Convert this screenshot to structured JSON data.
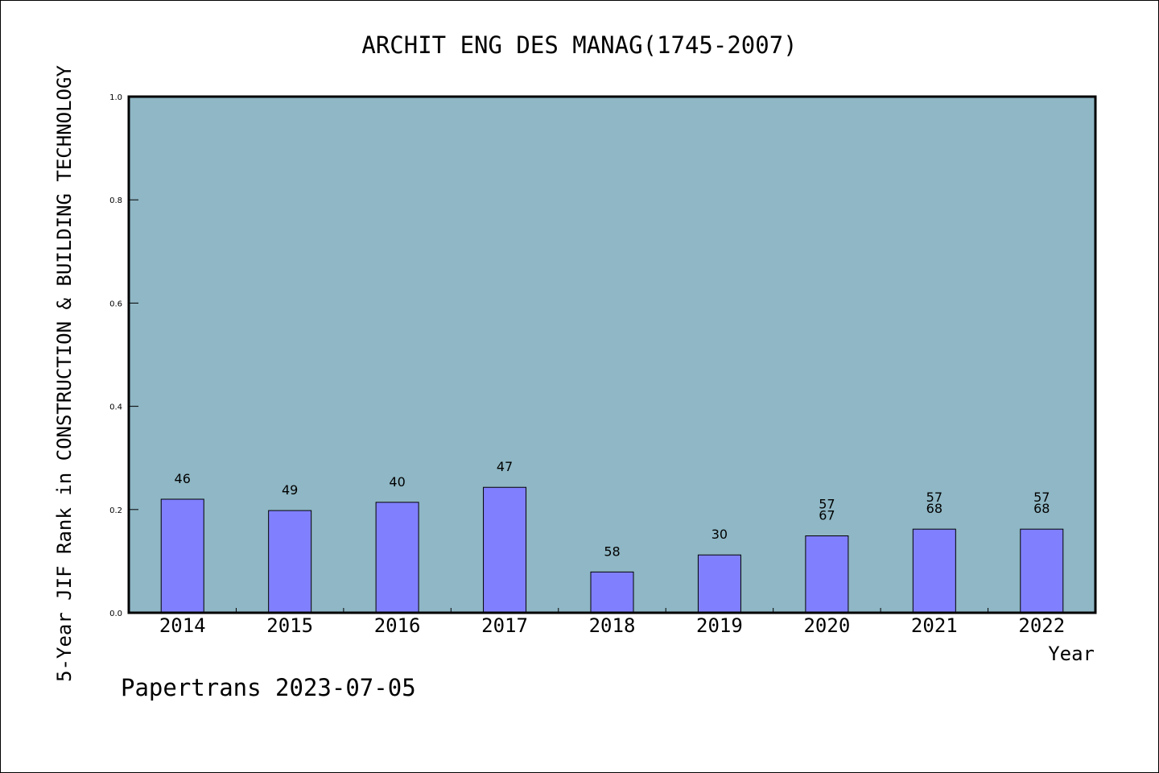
{
  "chart_data": {
    "type": "bar",
    "title": "ARCHIT ENG DES MANAG(1745-2007)",
    "xlabel": "Year",
    "ylabel": "5-Year JIF Rank in CONSTRUCTION & BUILDING TECHNOLOGY",
    "ylim": [
      0,
      1.0
    ],
    "yticks": [
      "0.0",
      "0.2",
      "0.4",
      "0.6",
      "0.8",
      "1.0"
    ],
    "categories": [
      "2014",
      "2015",
      "2016",
      "2017",
      "2018",
      "2019",
      "2020",
      "2021",
      "2022"
    ],
    "values": [
      0.22,
      0.198,
      0.214,
      0.243,
      0.079,
      0.112,
      0.149,
      0.162,
      0.162
    ],
    "bar_labels": [
      [
        "46"
      ],
      [
        "49"
      ],
      [
        "40"
      ],
      [
        "47"
      ],
      [
        "58"
      ],
      [
        "30"
      ],
      [
        "57",
        "67"
      ],
      [
        "57",
        "68"
      ],
      [
        "57",
        "68"
      ]
    ],
    "grid": false,
    "colors": {
      "plot_background": "#8fb7c5",
      "bar_fill": "#8080ff",
      "bar_stroke": "#000000"
    }
  },
  "footer": "Papertrans 2023-07-05"
}
